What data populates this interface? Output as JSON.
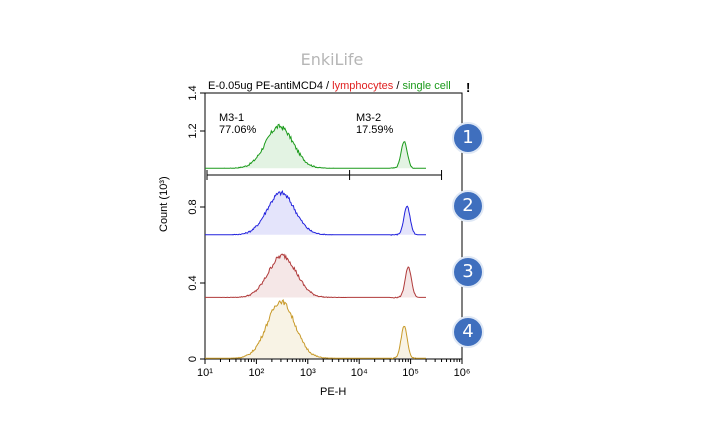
{
  "watermark": "EnkiLife",
  "header": {
    "part1": "E-0.05ug PE-antiMCD4 ",
    "sep1": "/ ",
    "part2": "lymphocytes",
    "sep2": " / ",
    "part3": "single cell"
  },
  "gates": [
    {
      "name": "M3-1",
      "percent": "77.06%"
    },
    {
      "name": "M3-2",
      "percent": "17.59%"
    }
  ],
  "badges": [
    "1",
    "2",
    "3",
    "4"
  ],
  "colors": {
    "sample1": "#1a9a1a",
    "sample2": "#2222dd",
    "sample3": "#b03a3a",
    "sample4": "#c89a2a",
    "badge": "#3f6fbe"
  },
  "chart_data": {
    "type": "area",
    "xlabel": "PE-H",
    "ylabel": "Count (10³)",
    "x_scale": "log",
    "xlim": [
      10,
      1000000
    ],
    "ylim": [
      0,
      1.4
    ],
    "x_ticks": [
      "10¹",
      "10²",
      "10³",
      "10⁴",
      "10⁵",
      "10⁶"
    ],
    "y_ticks": [
      "0",
      "0.4",
      "0.8",
      "1.2",
      "1.4"
    ],
    "series_offsets": [
      1.0,
      0.65,
      0.32,
      0.0
    ],
    "peaks": [
      {
        "low_peak_x": 280,
        "low_peak_height": 0.22,
        "high_peak_x": 75000,
        "high_peak_height": 0.14
      },
      {
        "low_peak_x": 300,
        "low_peak_height": 0.22,
        "high_peak_x": 85000,
        "high_peak_height": 0.15
      },
      {
        "low_peak_x": 320,
        "low_peak_height": 0.22,
        "high_peak_x": 90000,
        "high_peak_height": 0.16
      },
      {
        "low_peak_x": 300,
        "low_peak_height": 0.3,
        "high_peak_x": 75000,
        "high_peak_height": 0.17
      }
    ],
    "gate_ranges": [
      {
        "name": "M3-1",
        "x_start": 10,
        "x_end": 6500
      },
      {
        "name": "M3-2",
        "x_start": 6500,
        "x_end": 400000
      }
    ]
  }
}
